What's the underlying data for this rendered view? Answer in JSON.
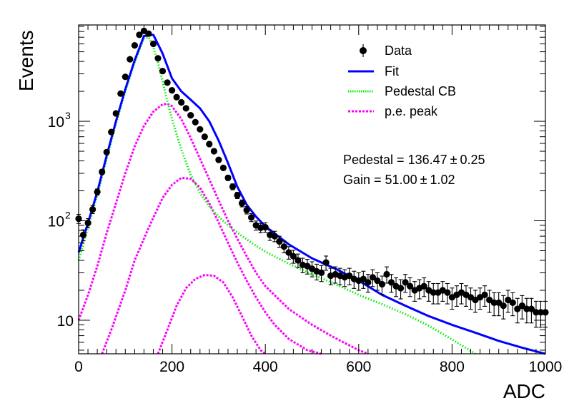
{
  "chart_data": {
    "type": "scatter",
    "title": "",
    "xlabel": "ADC",
    "ylabel": "Events",
    "xlim": [
      0,
      1000
    ],
    "ylim": [
      4.6,
      9300
    ],
    "yscale": "log",
    "grid": false,
    "legend_position": "top-right",
    "x_ticks": [
      0,
      200,
      400,
      600,
      800,
      1000
    ],
    "x_tick_labels": [
      "0",
      "200",
      "400",
      "600",
      "800",
      "1000"
    ],
    "y_ticks": [
      10,
      100,
      1000
    ],
    "y_tick_labels": [
      "10",
      "10",
      "10"
    ],
    "y_tick_exponents": [
      "",
      "2",
      "3"
    ],
    "legend": [
      {
        "label": "Data",
        "style": "marker",
        "color": "#000000"
      },
      {
        "label": "Fit",
        "style": "solid",
        "color": "#0000ff"
      },
      {
        "label": "Pedestal CB",
        "style": "dotted",
        "color": "#00ee00"
      },
      {
        "label": "p.e. peak",
        "style": "dashed",
        "color": "#ff00ff"
      }
    ],
    "annotations": [
      {
        "prefix": "Pedestal = 136.47",
        "pm": "±",
        "suffix": "0.25"
      },
      {
        "prefix": "Gain = 51.00",
        "pm": "±",
        "suffix": "1.02"
      }
    ],
    "data": {
      "name": "Data",
      "x": [
        0,
        10,
        20,
        30,
        40,
        50,
        60,
        70,
        80,
        90,
        100,
        110,
        120,
        130,
        140,
        150,
        160,
        170,
        180,
        190,
        200,
        210,
        220,
        230,
        240,
        250,
        260,
        270,
        280,
        290,
        300,
        310,
        320,
        330,
        340,
        350,
        360,
        370,
        380,
        390,
        400,
        410,
        420,
        430,
        440,
        450,
        460,
        470,
        480,
        490,
        500,
        510,
        520,
        530,
        540,
        550,
        560,
        570,
        580,
        590,
        600,
        610,
        620,
        630,
        640,
        650,
        660,
        670,
        680,
        690,
        700,
        710,
        720,
        730,
        740,
        750,
        760,
        770,
        780,
        790,
        800,
        810,
        820,
        830,
        840,
        850,
        860,
        870,
        880,
        890,
        900,
        910,
        920,
        930,
        940,
        950,
        960,
        970,
        980,
        990,
        1000
      ],
      "y": [
        105,
        72,
        95,
        130,
        195,
        310,
        490,
        780,
        1200,
        1900,
        2800,
        4200,
        5800,
        7400,
        8100,
        7600,
        6000,
        4300,
        3200,
        2450,
        2050,
        1750,
        1550,
        1350,
        1150,
        980,
        830,
        700,
        590,
        500,
        410,
        340,
        270,
        220,
        180,
        150,
        128,
        108,
        90,
        85,
        86,
        72,
        70,
        62,
        55,
        48,
        44,
        40,
        36,
        35,
        33,
        31,
        30,
        38,
        28,
        29,
        28,
        27,
        28,
        26,
        25,
        26,
        24,
        27,
        25,
        23,
        29,
        24,
        22,
        21,
        24,
        22,
        20,
        21,
        22,
        20,
        19,
        19,
        20,
        19,
        17,
        18,
        19,
        18,
        17,
        16,
        17,
        18,
        16,
        15,
        15,
        14,
        16,
        15,
        13,
        14,
        13,
        13,
        12,
        12,
        12
      ],
      "err": [
        11,
        9,
        10,
        12,
        14,
        18,
        22,
        28,
        35,
        44,
        53,
        65,
        76,
        86,
        90,
        87,
        77,
        66,
        57,
        50,
        45,
        42,
        39,
        37,
        34,
        31,
        29,
        26,
        24,
        22,
        20,
        18,
        16,
        15,
        13,
        12,
        11,
        10,
        9.5,
        9.2,
        9.3,
        8.5,
        8.4,
        7.9,
        7.4,
        6.9,
        6.6,
        6.3,
        6,
        5.9,
        5.7,
        5.6,
        5.5,
        6.2,
        5.3,
        5.4,
        5.3,
        5.2,
        5.3,
        5.1,
        5,
        5.1,
        4.9,
        5.2,
        5,
        4.8,
        5.4,
        4.9,
        4.7,
        4.6,
        4.9,
        4.7,
        4.5,
        4.6,
        4.7,
        4.5,
        4.4,
        4.4,
        4.5,
        4.4,
        4.1,
        4.2,
        4.4,
        4.2,
        4.1,
        4,
        4.1,
        4.2,
        4,
        3.9,
        3.9,
        3.7,
        4,
        3.9,
        3.6,
        3.7,
        3.6,
        3.6,
        3.5,
        3.5,
        3.5
      ]
    },
    "series": [
      {
        "name": "Fit",
        "x": [
          0,
          20,
          40,
          60,
          80,
          100,
          120,
          140,
          160,
          180,
          200,
          220,
          240,
          260,
          280,
          300,
          320,
          340,
          360,
          380,
          400,
          450,
          500,
          550,
          600,
          650,
          700,
          750,
          800,
          850,
          900,
          950,
          1000
        ],
        "y": [
          48,
          95,
          195,
          450,
          1000,
          2100,
          4100,
          7200,
          7400,
          4800,
          2700,
          2000,
          1650,
          1350,
          1000,
          640,
          380,
          220,
          145,
          110,
          88,
          58,
          42,
          33,
          25,
          18,
          14,
          11,
          9,
          7.5,
          6.2,
          5.3,
          4.6
        ]
      },
      {
        "name": "Pedestal CB",
        "x": [
          0,
          20,
          40,
          60,
          80,
          100,
          120,
          140,
          150,
          160,
          170,
          180,
          190,
          200,
          220,
          240,
          260,
          280,
          300,
          320,
          340,
          360,
          380,
          400,
          450,
          500,
          550,
          600,
          650,
          700,
          750,
          800,
          850
        ],
        "y": [
          40,
          85,
          180,
          420,
          950,
          2000,
          3900,
          6800,
          7000,
          5600,
          3900,
          2500,
          1600,
          1050,
          520,
          290,
          190,
          140,
          110,
          90,
          76,
          65,
          56,
          49,
          37,
          29,
          23,
          18,
          14.5,
          11.5,
          8.8,
          6.4,
          4.6
        ]
      },
      {
        "name": "p.e. peak 1",
        "x": [
          0,
          20,
          40,
          60,
          80,
          100,
          120,
          140,
          160,
          180,
          190,
          200,
          220,
          240,
          260,
          280,
          300,
          320,
          340,
          360,
          380,
          400,
          450,
          500,
          550,
          600,
          620
        ],
        "y": [
          10,
          18,
          35,
          75,
          150,
          300,
          560,
          900,
          1250,
          1480,
          1500,
          1420,
          1050,
          680,
          420,
          260,
          160,
          100,
          66,
          44,
          30,
          22,
          13,
          9,
          6.6,
          5,
          4.6
        ]
      },
      {
        "name": "p.e. peak 2",
        "x": [
          50,
          70,
          100,
          120,
          150,
          180,
          200,
          220,
          240,
          260,
          280,
          300,
          320,
          340,
          360,
          380,
          400,
          420,
          450,
          490,
          520
        ],
        "y": [
          4.6,
          8,
          20,
          40,
          85,
          170,
          230,
          270,
          265,
          215,
          150,
          96,
          60,
          38,
          25,
          17,
          12,
          9,
          6.5,
          5,
          4.6
        ]
      },
      {
        "name": "p.e. peak 3",
        "x": [
          170,
          190,
          210,
          230,
          250,
          270,
          290,
          310,
          330,
          350,
          370,
          390,
          400
        ],
        "y": [
          4.6,
          8,
          14,
          21,
          26,
          28.5,
          28,
          24,
          17,
          11,
          7,
          5,
          4.6
        ]
      }
    ]
  }
}
